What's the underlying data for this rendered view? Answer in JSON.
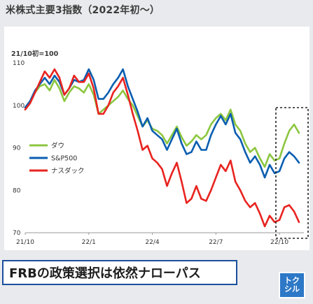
{
  "title": "米株式主要3指数（2022年初〜）",
  "caption": "FRBの政策選択は依然ナローパス",
  "logo": {
    "line1": "トク",
    "line2": "シル"
  },
  "colors": {
    "dow": "#8cc63f",
    "sp500": "#0a5eb0",
    "nasdaq": "#e8231f",
    "caption_border": "#1b4f9c"
  },
  "chart_data": {
    "type": "line",
    "ylabel": "21/10初=100",
    "ylim": [
      70,
      110
    ],
    "yticks": [
      70,
      80,
      90,
      100,
      110
    ],
    "x_tick_labels": [
      "21/10",
      "22/1",
      "22/4",
      "22/7",
      "22/10"
    ],
    "x_tick_positions": [
      0,
      13,
      26,
      39,
      52
    ],
    "xlim": [
      0,
      57
    ],
    "grid": false,
    "legend_position": "left-middle",
    "annotation": "dashed box highlighting latest period (22/10 onward)",
    "x": [
      0,
      1,
      2,
      3,
      4,
      5,
      6,
      7,
      8,
      9,
      10,
      11,
      12,
      13,
      14,
      15,
      16,
      17,
      18,
      19,
      20,
      21,
      22,
      23,
      24,
      25,
      26,
      27,
      28,
      29,
      30,
      31,
      32,
      33,
      34,
      35,
      36,
      37,
      38,
      39,
      40,
      41,
      42,
      43,
      44,
      45,
      46,
      47,
      48,
      49,
      50,
      51,
      52,
      53,
      54,
      55,
      56
    ],
    "series": [
      {
        "name": "ダウ",
        "color": "#8cc63f",
        "values": [
          99.5,
          101,
          103,
          104.5,
          105,
          103.5,
          106,
          104,
          101,
          103,
          104.5,
          104,
          103,
          105,
          102.5,
          98,
          99,
          100,
          101,
          102,
          103.5,
          101.5,
          100,
          97.5,
          95,
          96.5,
          94.5,
          94,
          93,
          91,
          93,
          95,
          92.5,
          90.5,
          91.5,
          93,
          92,
          93,
          95.5,
          97,
          98,
          96.5,
          99,
          95.5,
          94,
          91,
          89,
          90,
          87.5,
          85.5,
          88.5,
          87,
          87.5,
          91,
          94,
          95.5,
          93.5
        ]
      },
      {
        "name": "S&P500",
        "color": "#0a5eb0",
        "values": [
          99.5,
          101,
          103.5,
          105,
          106.5,
          105,
          107,
          105.5,
          102.5,
          104,
          106,
          105.5,
          106,
          108.5,
          106,
          101.5,
          101.5,
          103,
          105,
          106.5,
          108.5,
          104.5,
          101.5,
          98.5,
          95,
          97,
          94,
          93,
          92,
          89.5,
          92,
          94.5,
          91,
          88.5,
          89,
          91.5,
          89.5,
          89.5,
          93,
          95.5,
          97.5,
          95.5,
          98,
          93.5,
          92,
          89,
          86.5,
          88,
          86,
          83,
          86,
          84,
          84.5,
          87.5,
          89,
          88,
          86.5
        ]
      },
      {
        "name": "ナスダック",
        "color": "#e8231f",
        "values": [
          99,
          100.5,
          103,
          105.5,
          108,
          106.5,
          108.5,
          106.5,
          102.5,
          104,
          107,
          105.5,
          105.5,
          107.5,
          104,
          98,
          98,
          100,
          103,
          104.5,
          106.5,
          102.5,
          98,
          94,
          89.5,
          90.5,
          87.5,
          86.5,
          85,
          81,
          84,
          86.5,
          82,
          77,
          78,
          81,
          78,
          77.5,
          80,
          83,
          86,
          84.5,
          87,
          82,
          80,
          77.5,
          76,
          77,
          74.5,
          71.5,
          74,
          72.5,
          73,
          76,
          76.5,
          75,
          72.5
        ]
      }
    ]
  }
}
